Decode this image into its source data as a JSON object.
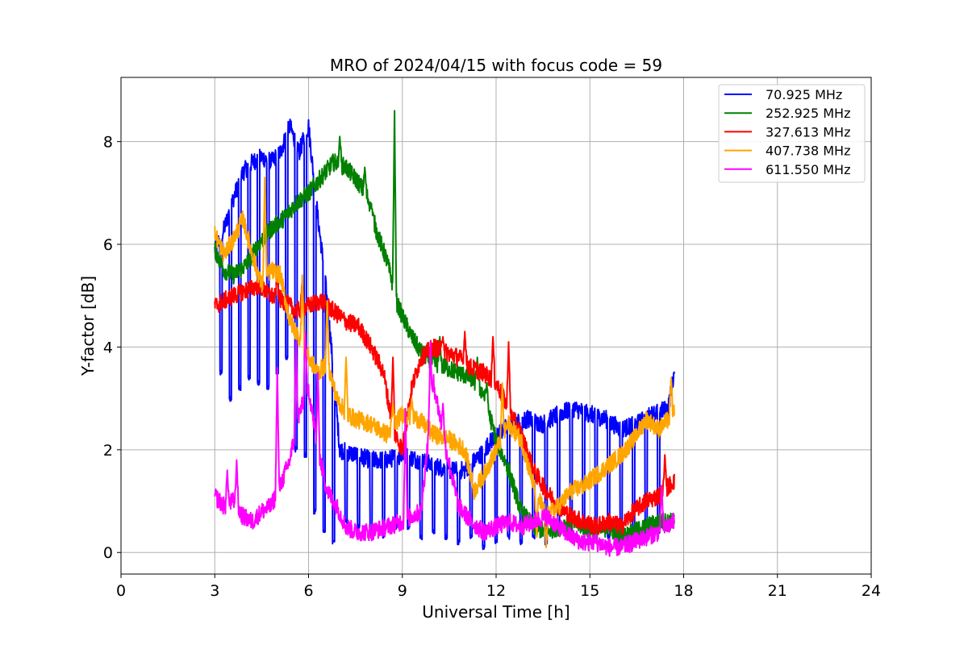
{
  "chart_data": {
    "type": "line",
    "title": "MRO of 2024/04/15 with focus code = 59",
    "xlabel": "Universal Time [h]",
    "ylabel": "Y-factor [dB]",
    "xlim": [
      0,
      24
    ],
    "ylim": [
      -0.42,
      9.25
    ],
    "xticks": [
      0,
      3,
      6,
      9,
      12,
      15,
      18,
      21,
      24
    ],
    "yticks": [
      0,
      2,
      4,
      6,
      8
    ],
    "grid": true,
    "legend_position": "top-right",
    "series": [
      {
        "name": " 70.925 MHz",
        "color": "#0000ff",
        "x": [
          3.0,
          3.3,
          3.6,
          3.9,
          4.2,
          4.5,
          4.8,
          5.1,
          5.4,
          5.7,
          6.0,
          6.3,
          6.5,
          6.7,
          7.0,
          7.5,
          8.0,
          8.5,
          9.0,
          9.5,
          10.0,
          10.5,
          11.0,
          11.5,
          12.0,
          12.5,
          13.0,
          13.5,
          14.0,
          14.5,
          15.0,
          15.5,
          16.0,
          16.5,
          17.0,
          17.5,
          17.7
        ],
        "y": [
          5.9,
          6.3,
          6.9,
          7.4,
          7.6,
          7.7,
          7.6,
          7.8,
          8.3,
          7.8,
          8.3,
          6.5,
          5.5,
          4.2,
          2.0,
          1.9,
          1.8,
          1.8,
          1.9,
          1.8,
          1.7,
          1.6,
          1.6,
          1.9,
          2.3,
          2.5,
          2.6,
          2.5,
          2.7,
          2.8,
          2.7,
          2.6,
          2.4,
          2.5,
          2.7,
          2.8,
          3.5
        ],
        "dips": [
          [
            3.2,
            3.5
          ],
          [
            3.5,
            3.0
          ],
          [
            3.8,
            3.2
          ],
          [
            4.1,
            3.4
          ],
          [
            4.4,
            3.3
          ],
          [
            4.7,
            3.2
          ],
          [
            5.0,
            3.5
          ],
          [
            5.3,
            3.8
          ],
          [
            5.6,
            2.0
          ],
          [
            5.9,
            1.9
          ],
          [
            6.2,
            0.8
          ],
          [
            6.5,
            0.4
          ],
          [
            6.8,
            0.2
          ],
          [
            7.2,
            0.6
          ],
          [
            7.6,
            0.5
          ],
          [
            8.0,
            0.4
          ],
          [
            8.4,
            0.3
          ],
          [
            8.8,
            0.5
          ],
          [
            9.2,
            0.5
          ],
          [
            9.6,
            0.3
          ],
          [
            10.0,
            0.4
          ],
          [
            10.4,
            0.3
          ],
          [
            10.8,
            0.2
          ],
          [
            11.2,
            0.3
          ],
          [
            11.6,
            0.1
          ],
          [
            12.0,
            0.2
          ],
          [
            12.4,
            0.3
          ],
          [
            12.8,
            0.2
          ],
          [
            13.2,
            0.3
          ],
          [
            13.6,
            0.2
          ],
          [
            14.0,
            0.4
          ],
          [
            14.4,
            0.3
          ],
          [
            14.8,
            0.4
          ],
          [
            15.2,
            0.4
          ],
          [
            15.6,
            0.3
          ],
          [
            16.0,
            0.3
          ],
          [
            16.4,
            0.4
          ],
          [
            16.8,
            0.3
          ],
          [
            17.2,
            0.4
          ]
        ]
      },
      {
        "name": "252.925 MHz",
        "color": "#008000",
        "x": [
          3.0,
          3.3,
          3.6,
          4.0,
          4.4,
          4.8,
          5.2,
          5.6,
          6.0,
          6.4,
          6.8,
          7.2,
          7.6,
          7.9,
          8.2,
          8.5,
          8.7,
          8.8,
          9.0,
          9.3,
          9.6,
          10.0,
          10.4,
          10.8,
          11.2,
          11.6,
          12.0,
          12.4,
          12.8,
          13.2,
          13.6,
          14.0,
          14.4,
          14.8,
          15.2,
          15.6,
          16.0,
          16.4,
          16.8,
          17.2,
          17.7
        ],
        "y": [
          5.9,
          5.5,
          5.4,
          5.6,
          6.0,
          6.3,
          6.5,
          6.8,
          7.0,
          7.3,
          7.6,
          7.5,
          7.2,
          6.9,
          6.2,
          5.7,
          5.2,
          4.9,
          4.6,
          4.2,
          3.9,
          3.7,
          3.6,
          3.5,
          3.4,
          3.1,
          2.2,
          1.6,
          0.8,
          0.5,
          0.4,
          0.5,
          0.6,
          0.5,
          0.4,
          0.5,
          0.3,
          0.4,
          0.5,
          0.6,
          0.6
        ],
        "spikes": [
          [
            8.75,
            8.6
          ],
          [
            7.0,
            8.1
          ],
          [
            7.8,
            7.5
          ],
          [
            8.0,
            6.8
          ],
          [
            10.2,
            4.2
          ],
          [
            11.4,
            3.8
          ],
          [
            11.7,
            3.3
          ]
        ]
      },
      {
        "name": "327.613 MHz",
        "color": "#ff0000",
        "x": [
          3.0,
          3.3,
          3.6,
          4.0,
          4.4,
          4.8,
          5.2,
          5.6,
          6.0,
          6.4,
          6.8,
          7.2,
          7.6,
          8.0,
          8.4,
          8.7,
          9.0,
          9.3,
          9.6,
          10.0,
          10.4,
          10.8,
          11.2,
          11.6,
          12.0,
          12.4,
          12.8,
          13.2,
          13.6,
          14.0,
          14.4,
          14.8,
          15.2,
          15.6,
          16.0,
          16.4,
          16.8,
          17.2,
          17.7
        ],
        "y": [
          4.8,
          4.9,
          5.0,
          5.1,
          5.2,
          5.0,
          4.9,
          4.7,
          4.8,
          4.9,
          4.7,
          4.5,
          4.4,
          4.0,
          3.5,
          2.4,
          2.0,
          3.2,
          3.8,
          4.0,
          3.9,
          3.8,
          3.6,
          3.5,
          3.3,
          2.8,
          2.3,
          1.6,
          1.2,
          0.9,
          0.7,
          0.6,
          0.5,
          0.6,
          0.5,
          0.8,
          1.0,
          1.1,
          1.4
        ],
        "spikes": [
          [
            5.0,
            5.4
          ],
          [
            5.8,
            5.3
          ],
          [
            8.7,
            3.8
          ],
          [
            10.3,
            4.2
          ],
          [
            11.0,
            4.3
          ],
          [
            11.9,
            4.2
          ],
          [
            12.4,
            4.1
          ],
          [
            17.4,
            1.9
          ]
        ]
      },
      {
        "name": "407.738 MHz",
        "color": "#ffa500",
        "x": [
          3.0,
          3.3,
          3.6,
          3.9,
          4.2,
          4.5,
          4.8,
          5.1,
          5.4,
          5.7,
          6.0,
          6.3,
          6.6,
          6.9,
          7.2,
          7.5,
          8.0,
          8.5,
          9.0,
          9.5,
          10.0,
          10.5,
          11.0,
          11.3,
          11.6,
          12.0,
          12.4,
          12.8,
          13.2,
          13.6,
          14.0,
          14.4,
          14.8,
          15.2,
          15.6,
          16.0,
          16.4,
          16.8,
          17.2,
          17.7
        ],
        "y": [
          6.2,
          5.8,
          6.1,
          6.5,
          5.8,
          5.2,
          5.5,
          5.4,
          4.5,
          4.2,
          3.8,
          3.5,
          3.7,
          3.0,
          2.7,
          2.6,
          2.5,
          2.3,
          2.7,
          2.6,
          2.3,
          2.2,
          2.0,
          1.2,
          1.5,
          2.0,
          2.5,
          2.2,
          1.3,
          0.7,
          0.9,
          1.2,
          1.3,
          1.5,
          1.7,
          1.9,
          2.2,
          2.6,
          2.4,
          2.7
        ],
        "spikes": [
          [
            4.6,
            7.3
          ],
          [
            5.8,
            5.4
          ],
          [
            6.6,
            4.9
          ],
          [
            7.2,
            3.8
          ],
          [
            8.7,
            2.9
          ],
          [
            9.3,
            3.0
          ],
          [
            12.2,
            3.3
          ],
          [
            13.3,
            0.3
          ],
          [
            13.6,
            0.1
          ],
          [
            17.6,
            3.4
          ]
        ]
      },
      {
        "name": "611.550 MHz",
        "color": "#ff00ff",
        "x": [
          3.0,
          3.3,
          3.6,
          3.9,
          4.2,
          4.5,
          4.8,
          5.1,
          5.4,
          5.7,
          6.0,
          6.3,
          6.6,
          6.9,
          7.2,
          7.5,
          8.0,
          8.5,
          9.0,
          9.3,
          9.6,
          10.0,
          10.4,
          10.8,
          11.2,
          11.6,
          12.0,
          12.4,
          12.8,
          13.2,
          13.6,
          14.0,
          14.4,
          14.8,
          15.2,
          15.6,
          16.0,
          16.4,
          16.8,
          17.2,
          17.7
        ],
        "y": [
          1.1,
          0.9,
          1.0,
          0.7,
          0.6,
          0.8,
          0.9,
          1.3,
          1.8,
          2.7,
          3.2,
          2.0,
          1.2,
          0.9,
          0.5,
          0.4,
          0.4,
          0.5,
          0.6,
          0.7,
          0.8,
          3.3,
          2.0,
          0.9,
          0.6,
          0.4,
          0.5,
          0.6,
          0.5,
          0.6,
          0.7,
          0.5,
          0.3,
          0.2,
          0.2,
          0.1,
          0.1,
          0.2,
          0.3,
          0.4,
          0.6
        ],
        "spikes": [
          [
            3.4,
            1.6
          ],
          [
            3.7,
            1.8
          ],
          [
            5.0,
            3.6
          ],
          [
            5.6,
            4.1
          ],
          [
            5.9,
            4.3
          ],
          [
            6.3,
            3.5
          ],
          [
            9.1,
            2.8
          ],
          [
            9.9,
            4.1
          ],
          [
            10.3,
            2.9
          ],
          [
            17.3,
            1.3
          ]
        ]
      }
    ]
  }
}
